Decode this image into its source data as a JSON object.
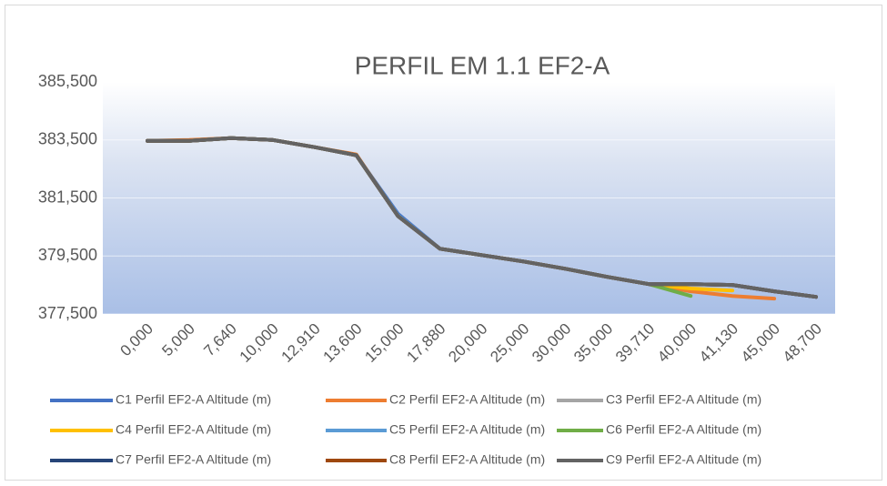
{
  "chart_data": {
    "type": "line",
    "title": "PERFIL EM 1.1 EF2-A",
    "categories": [
      "0,000",
      "5,000",
      "7,640",
      "10,000",
      "12,910",
      "13,600",
      "15,000",
      "17,880",
      "20,000",
      "25,000",
      "30,000",
      "35,000",
      "39,710",
      "40,000",
      "41,130",
      "45,000",
      "48,700"
    ],
    "ylim": [
      377.5,
      385.5
    ],
    "yticks": [
      {
        "value": 377.5,
        "label": "377,500"
      },
      {
        "value": 379.5,
        "label": "379,500"
      },
      {
        "value": 381.5,
        "label": "381,500"
      },
      {
        "value": 383.5,
        "label": "383,500"
      },
      {
        "value": 385.5,
        "label": "385,500"
      }
    ],
    "grid": true,
    "legend": "bottom",
    "series": [
      {
        "name": "C1 Perfil EF2-A Altitude (m)",
        "color": "#4472c4",
        "values": [
          383.47,
          383.47,
          383.56,
          383.5,
          383.25,
          382.97,
          380.95,
          379.75,
          379.53,
          379.31,
          379.06,
          378.78,
          378.53,
          378.53,
          378.5,
          378.28,
          378.09
        ]
      },
      {
        "name": "C2 Perfil EF2-A Altitude (m)",
        "color": "#ed7d31",
        "values": [
          383.47,
          383.5,
          383.56,
          383.5,
          383.25,
          383.0,
          380.87,
          379.75,
          379.53,
          379.31,
          379.06,
          378.78,
          378.53,
          378.28,
          378.12,
          378.03,
          null
        ]
      },
      {
        "name": "C3 Perfil EF2-A Altitude (m)",
        "color": "#a5a5a5",
        "values": [
          383.47,
          383.47,
          383.56,
          383.5,
          383.25,
          382.97,
          380.87,
          379.75,
          379.53,
          379.31,
          379.06,
          378.78,
          378.53,
          378.53,
          378.5,
          378.28,
          378.09
        ]
      },
      {
        "name": "C4 Perfil EF2-A Altitude (m)",
        "color": "#ffc000",
        "values": [
          383.47,
          383.47,
          383.56,
          383.5,
          383.25,
          382.97,
          380.87,
          379.75,
          379.53,
          379.31,
          379.06,
          378.78,
          378.53,
          378.38,
          378.31,
          null,
          null
        ]
      },
      {
        "name": "C5 Perfil EF2-A Altitude (m)",
        "color": "#5b9bd5",
        "values": [
          383.47,
          383.47,
          383.56,
          383.5,
          383.25,
          382.97,
          380.9,
          379.75,
          379.53,
          379.31,
          379.06,
          378.78,
          378.53,
          378.53,
          378.5,
          378.28,
          378.09
        ]
      },
      {
        "name": "C6 Perfil EF2-A Altitude (m)",
        "color": "#70ad47",
        "values": [
          383.47,
          383.47,
          383.56,
          383.5,
          383.25,
          382.97,
          380.87,
          379.75,
          379.53,
          379.31,
          379.06,
          378.78,
          378.53,
          378.12,
          null,
          null,
          null
        ]
      },
      {
        "name": "C7 Perfil EF2-A Altitude (m)",
        "color": "#264478",
        "values": [
          383.47,
          383.47,
          383.56,
          383.5,
          383.25,
          382.97,
          380.87,
          379.75,
          379.53,
          379.31,
          379.06,
          378.78,
          378.53,
          378.53,
          378.5,
          378.28,
          378.09
        ]
      },
      {
        "name": "C8 Perfil EF2-A Altitude (m)",
        "color": "#9e480e",
        "values": [
          383.47,
          383.47,
          383.56,
          383.5,
          383.25,
          382.97,
          380.87,
          379.75,
          379.53,
          379.31,
          379.06,
          378.78,
          378.53,
          378.53,
          378.5,
          378.28,
          378.09
        ]
      },
      {
        "name": "C9 Perfil EF2-A Altitude (m)",
        "color": "#636363",
        "values": [
          383.47,
          383.47,
          383.56,
          383.5,
          383.25,
          382.97,
          380.87,
          379.75,
          379.53,
          379.31,
          379.06,
          378.78,
          378.53,
          378.53,
          378.5,
          378.28,
          378.09
        ]
      }
    ]
  }
}
